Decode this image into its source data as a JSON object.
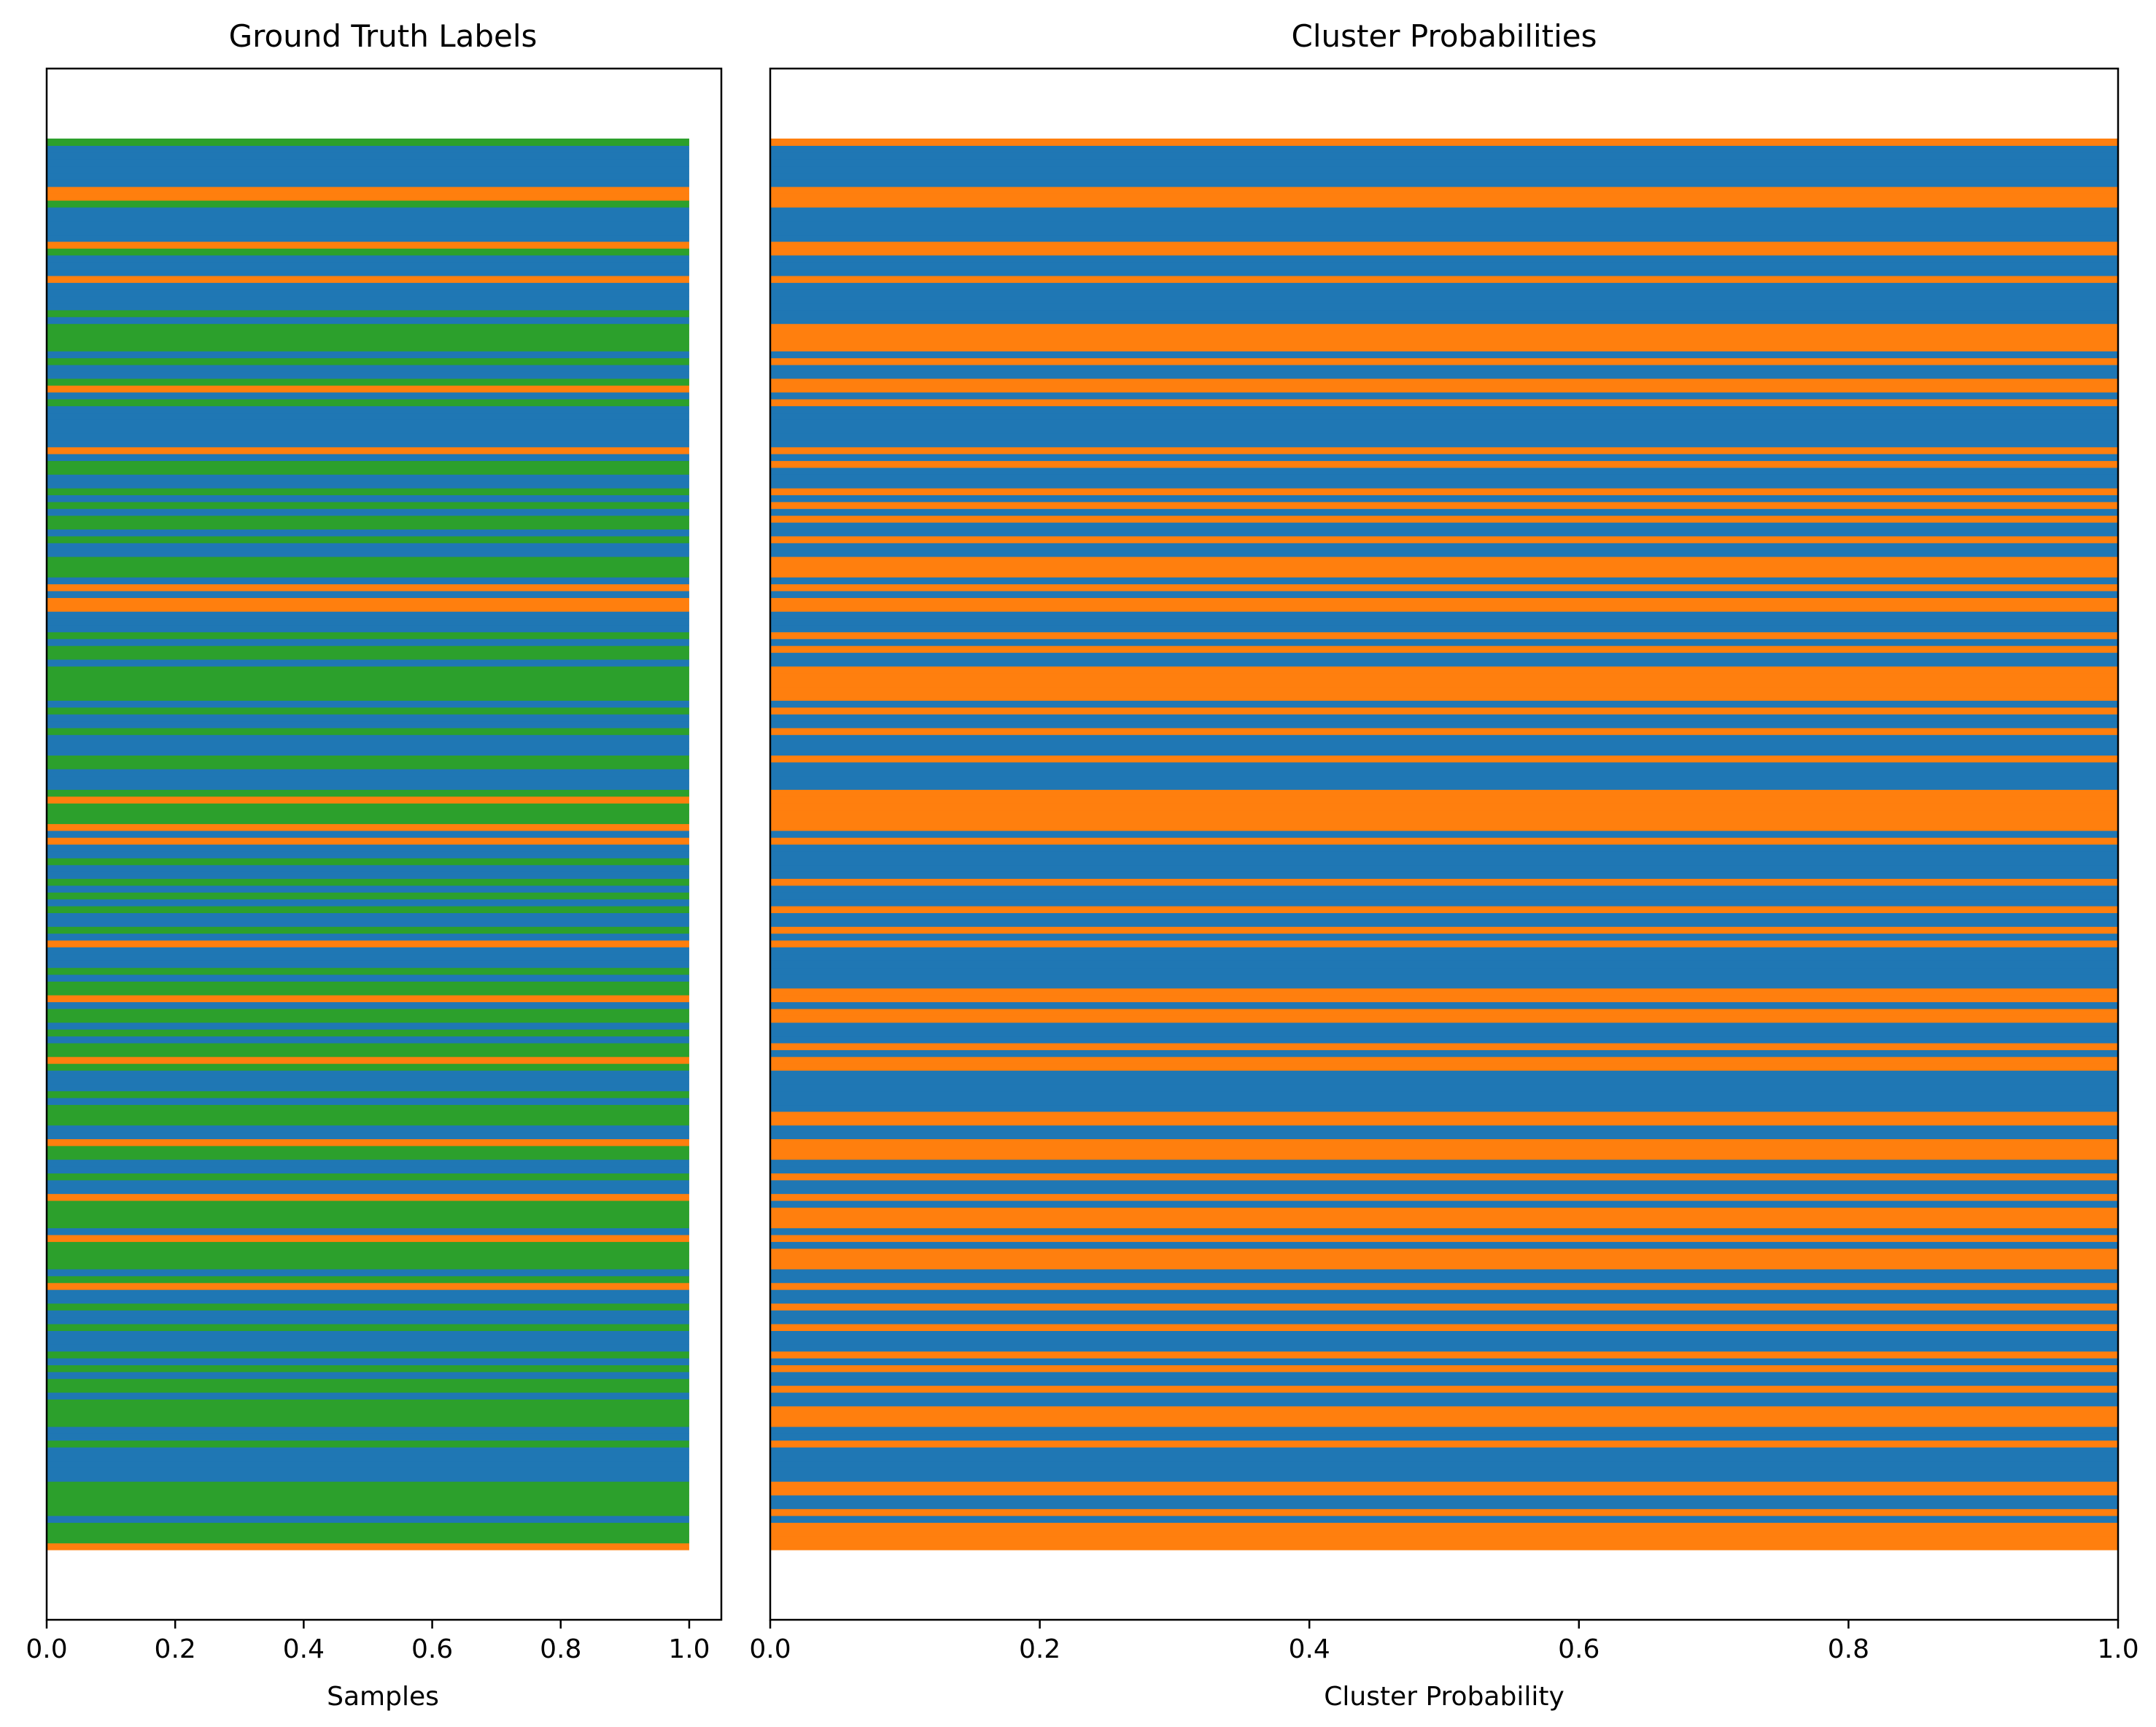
{
  "chart_data": [
    {
      "type": "bar",
      "orientation": "horizontal",
      "stacked": true,
      "title": "Ground Truth Labels",
      "xlabel": "Samples",
      "ylabel": "",
      "xlim": [
        0,
        1.05
      ],
      "x_ticks": [
        "0.0",
        "0.2",
        "0.4",
        "0.6",
        "0.8",
        "1.0"
      ],
      "y_ticks": [],
      "grid": false,
      "legend": "none",
      "n_samples": 200,
      "colors": {
        "class_0": "#1f77b4",
        "class_1": "#ff7f0e",
        "class_2": "#2ca02c"
      },
      "description_of_values": "one horizontal bar of length 1.0 per sample, colored by its ground-truth class (0, 1 or 2); samples listed bottom to top",
      "labels": [
        1,
        2,
        2,
        2,
        0,
        2,
        2,
        2,
        2,
        2,
        0,
        0,
        0,
        0,
        0,
        2,
        0,
        0,
        2,
        2,
        2,
        2,
        0,
        2,
        2,
        0,
        2,
        0,
        2,
        0,
        0,
        0,
        2,
        0,
        0,
        2,
        0,
        0,
        1,
        2,
        0,
        2,
        2,
        2,
        2,
        1,
        0,
        2,
        2,
        2,
        2,
        1,
        0,
        0,
        2,
        0,
        0,
        2,
        2,
        1,
        0,
        0,
        2,
        2,
        2,
        0,
        2,
        0,
        0,
        0,
        2,
        1,
        2,
        2,
        0,
        2,
        0,
        2,
        2,
        0,
        1,
        2,
        2,
        0,
        2,
        0,
        0,
        0,
        1,
        0,
        2,
        0,
        0,
        2,
        0,
        2,
        0,
        2,
        0,
        0,
        2,
        0,
        0,
        1,
        0,
        1,
        2,
        2,
        2,
        1,
        2,
        0,
        0,
        0,
        2,
        2,
        0,
        0,
        0,
        2,
        0,
        0,
        2,
        0,
        2,
        2,
        2,
        2,
        2,
        0,
        2,
        2,
        0,
        2,
        0,
        0,
        0,
        1,
        1,
        0,
        1,
        0,
        2,
        2,
        2,
        0,
        0,
        2,
        0,
        2,
        2,
        0,
        2,
        0,
        2,
        0,
        0,
        2,
        2,
        0,
        1,
        0,
        0,
        0,
        0,
        0,
        0,
        2,
        0,
        1,
        2,
        0,
        0,
        2,
        0,
        2,
        2,
        2,
        2,
        0,
        2,
        0,
        0,
        0,
        0,
        1,
        0,
        0,
        0,
        2,
        1,
        0,
        0,
        0,
        0,
        0,
        2,
        1,
        1,
        0,
        0,
        0,
        0,
        0,
        0,
        2
      ]
    },
    {
      "type": "bar",
      "orientation": "horizontal",
      "stacked": true,
      "title": "Cluster Probabilities",
      "xlabel": "Cluster Probability",
      "ylabel": "",
      "xlim": [
        0,
        1.0
      ],
      "x_ticks": [
        "0.0",
        "0.2",
        "0.4",
        "0.6",
        "0.8",
        "1.0"
      ],
      "y_ticks": [],
      "grid": false,
      "legend": "none",
      "n_samples": 200,
      "colors": {
        "cluster_0": "#1f77b4",
        "cluster_1": "#ff7f0e"
      },
      "description_of_values": "one full-width horizontal bar per sample, colored by its most probable cluster (0 or 1); samples listed bottom to top",
      "assignments": [
        1,
        1,
        1,
        1,
        0,
        1,
        0,
        0,
        1,
        1,
        0,
        0,
        0,
        0,
        0,
        1,
        0,
        0,
        1,
        1,
        1,
        0,
        0,
        1,
        0,
        0,
        1,
        0,
        1,
        0,
        0,
        0,
        1,
        0,
        0,
        1,
        0,
        0,
        1,
        0,
        0,
        1,
        1,
        1,
        0,
        1,
        0,
        1,
        1,
        1,
        0,
        1,
        0,
        0,
        1,
        0,
        0,
        1,
        1,
        1,
        0,
        0,
        1,
        1,
        0,
        0,
        0,
        0,
        0,
        0,
        1,
        1,
        0,
        1,
        0,
        0,
        0,
        1,
        1,
        0,
        1,
        1,
        0,
        0,
        0,
        0,
        0,
        0,
        1,
        0,
        1,
        0,
        0,
        1,
        0,
        0,
        0,
        1,
        0,
        0,
        0,
        0,
        0,
        1,
        0,
        1,
        1,
        1,
        1,
        1,
        1,
        0,
        0,
        0,
        0,
        1,
        0,
        0,
        0,
        1,
        0,
        0,
        1,
        0,
        1,
        1,
        1,
        1,
        1,
        0,
        0,
        1,
        0,
        1,
        0,
        0,
        0,
        1,
        1,
        0,
        1,
        0,
        1,
        1,
        1,
        0,
        0,
        1,
        0,
        0,
        1,
        0,
        1,
        0,
        1,
        0,
        0,
        0,
        1,
        0,
        1,
        0,
        0,
        0,
        0,
        0,
        0,
        1,
        0,
        1,
        1,
        0,
        0,
        1,
        0,
        1,
        1,
        1,
        1,
        0,
        0,
        0,
        0,
        0,
        0,
        1,
        0,
        0,
        0,
        1,
        1,
        0,
        0,
        0,
        0,
        0,
        1,
        1,
        1,
        0,
        0,
        0,
        0,
        0,
        0,
        1
      ]
    }
  ]
}
